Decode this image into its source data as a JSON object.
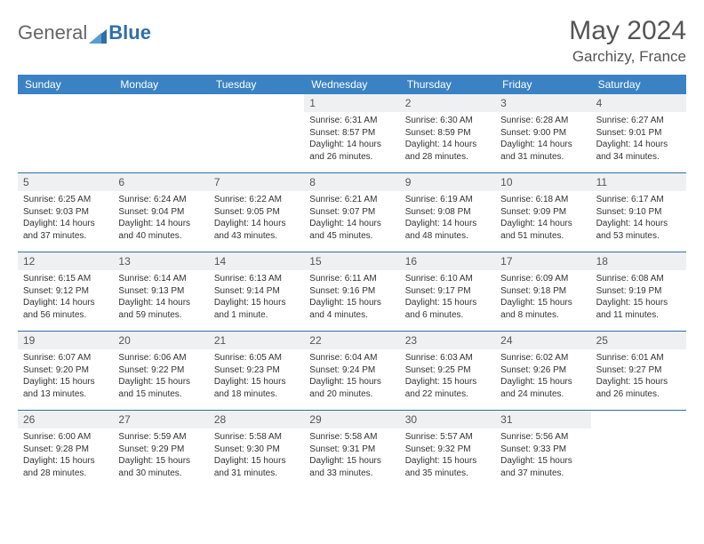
{
  "brand": {
    "part1": "General",
    "part2": "Blue"
  },
  "title": "May 2024",
  "subtitle": "Garchizy, France",
  "colors": {
    "header_bg": "#3b82c4",
    "header_fg": "#ffffff",
    "rule": "#2f6fa7",
    "daynum_bg": "#eef0f2",
    "text": "#333333"
  },
  "day_names": [
    "Sunday",
    "Monday",
    "Tuesday",
    "Wednesday",
    "Thursday",
    "Friday",
    "Saturday"
  ],
  "weeks": [
    [
      null,
      null,
      null,
      {
        "n": "1",
        "sr": "Sunrise: 6:31 AM",
        "ss": "Sunset: 8:57 PM",
        "dl": "Daylight: 14 hours and 26 minutes."
      },
      {
        "n": "2",
        "sr": "Sunrise: 6:30 AM",
        "ss": "Sunset: 8:59 PM",
        "dl": "Daylight: 14 hours and 28 minutes."
      },
      {
        "n": "3",
        "sr": "Sunrise: 6:28 AM",
        "ss": "Sunset: 9:00 PM",
        "dl": "Daylight: 14 hours and 31 minutes."
      },
      {
        "n": "4",
        "sr": "Sunrise: 6:27 AM",
        "ss": "Sunset: 9:01 PM",
        "dl": "Daylight: 14 hours and 34 minutes."
      }
    ],
    [
      {
        "n": "5",
        "sr": "Sunrise: 6:25 AM",
        "ss": "Sunset: 9:03 PM",
        "dl": "Daylight: 14 hours and 37 minutes."
      },
      {
        "n": "6",
        "sr": "Sunrise: 6:24 AM",
        "ss": "Sunset: 9:04 PM",
        "dl": "Daylight: 14 hours and 40 minutes."
      },
      {
        "n": "7",
        "sr": "Sunrise: 6:22 AM",
        "ss": "Sunset: 9:05 PM",
        "dl": "Daylight: 14 hours and 43 minutes."
      },
      {
        "n": "8",
        "sr": "Sunrise: 6:21 AM",
        "ss": "Sunset: 9:07 PM",
        "dl": "Daylight: 14 hours and 45 minutes."
      },
      {
        "n": "9",
        "sr": "Sunrise: 6:19 AM",
        "ss": "Sunset: 9:08 PM",
        "dl": "Daylight: 14 hours and 48 minutes."
      },
      {
        "n": "10",
        "sr": "Sunrise: 6:18 AM",
        "ss": "Sunset: 9:09 PM",
        "dl": "Daylight: 14 hours and 51 minutes."
      },
      {
        "n": "11",
        "sr": "Sunrise: 6:17 AM",
        "ss": "Sunset: 9:10 PM",
        "dl": "Daylight: 14 hours and 53 minutes."
      }
    ],
    [
      {
        "n": "12",
        "sr": "Sunrise: 6:15 AM",
        "ss": "Sunset: 9:12 PM",
        "dl": "Daylight: 14 hours and 56 minutes."
      },
      {
        "n": "13",
        "sr": "Sunrise: 6:14 AM",
        "ss": "Sunset: 9:13 PM",
        "dl": "Daylight: 14 hours and 59 minutes."
      },
      {
        "n": "14",
        "sr": "Sunrise: 6:13 AM",
        "ss": "Sunset: 9:14 PM",
        "dl": "Daylight: 15 hours and 1 minute."
      },
      {
        "n": "15",
        "sr": "Sunrise: 6:11 AM",
        "ss": "Sunset: 9:16 PM",
        "dl": "Daylight: 15 hours and 4 minutes."
      },
      {
        "n": "16",
        "sr": "Sunrise: 6:10 AM",
        "ss": "Sunset: 9:17 PM",
        "dl": "Daylight: 15 hours and 6 minutes."
      },
      {
        "n": "17",
        "sr": "Sunrise: 6:09 AM",
        "ss": "Sunset: 9:18 PM",
        "dl": "Daylight: 15 hours and 8 minutes."
      },
      {
        "n": "18",
        "sr": "Sunrise: 6:08 AM",
        "ss": "Sunset: 9:19 PM",
        "dl": "Daylight: 15 hours and 11 minutes."
      }
    ],
    [
      {
        "n": "19",
        "sr": "Sunrise: 6:07 AM",
        "ss": "Sunset: 9:20 PM",
        "dl": "Daylight: 15 hours and 13 minutes."
      },
      {
        "n": "20",
        "sr": "Sunrise: 6:06 AM",
        "ss": "Sunset: 9:22 PM",
        "dl": "Daylight: 15 hours and 15 minutes."
      },
      {
        "n": "21",
        "sr": "Sunrise: 6:05 AM",
        "ss": "Sunset: 9:23 PM",
        "dl": "Daylight: 15 hours and 18 minutes."
      },
      {
        "n": "22",
        "sr": "Sunrise: 6:04 AM",
        "ss": "Sunset: 9:24 PM",
        "dl": "Daylight: 15 hours and 20 minutes."
      },
      {
        "n": "23",
        "sr": "Sunrise: 6:03 AM",
        "ss": "Sunset: 9:25 PM",
        "dl": "Daylight: 15 hours and 22 minutes."
      },
      {
        "n": "24",
        "sr": "Sunrise: 6:02 AM",
        "ss": "Sunset: 9:26 PM",
        "dl": "Daylight: 15 hours and 24 minutes."
      },
      {
        "n": "25",
        "sr": "Sunrise: 6:01 AM",
        "ss": "Sunset: 9:27 PM",
        "dl": "Daylight: 15 hours and 26 minutes."
      }
    ],
    [
      {
        "n": "26",
        "sr": "Sunrise: 6:00 AM",
        "ss": "Sunset: 9:28 PM",
        "dl": "Daylight: 15 hours and 28 minutes."
      },
      {
        "n": "27",
        "sr": "Sunrise: 5:59 AM",
        "ss": "Sunset: 9:29 PM",
        "dl": "Daylight: 15 hours and 30 minutes."
      },
      {
        "n": "28",
        "sr": "Sunrise: 5:58 AM",
        "ss": "Sunset: 9:30 PM",
        "dl": "Daylight: 15 hours and 31 minutes."
      },
      {
        "n": "29",
        "sr": "Sunrise: 5:58 AM",
        "ss": "Sunset: 9:31 PM",
        "dl": "Daylight: 15 hours and 33 minutes."
      },
      {
        "n": "30",
        "sr": "Sunrise: 5:57 AM",
        "ss": "Sunset: 9:32 PM",
        "dl": "Daylight: 15 hours and 35 minutes."
      },
      {
        "n": "31",
        "sr": "Sunrise: 5:56 AM",
        "ss": "Sunset: 9:33 PM",
        "dl": "Daylight: 15 hours and 37 minutes."
      },
      null
    ]
  ]
}
